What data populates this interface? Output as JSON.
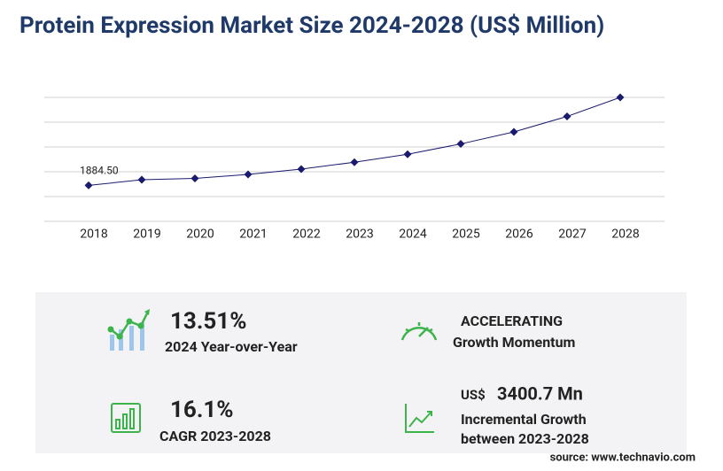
{
  "chart_data": {
    "type": "line",
    "title": "Protein Expression Market Size 2024-2028 (US$ Million)",
    "categories": [
      "2018",
      "2019",
      "2020",
      "2021",
      "2022",
      "2023",
      "2024",
      "2025",
      "2026",
      "2027",
      "2028"
    ],
    "values": [
      1884.5,
      2180,
      2250,
      2460,
      2740,
      3100,
      3519,
      4060,
      4690,
      5500,
      6500.7
    ],
    "value_labels": [
      "1884.50",
      null,
      null,
      null,
      null,
      null,
      null,
      null,
      null,
      null,
      null
    ],
    "color": "#1a1a6e",
    "ylim": [
      0,
      6500
    ],
    "yticks": [
      0,
      1300,
      2600,
      3900,
      5200,
      6500
    ],
    "grid": true
  },
  "stats": [
    {
      "value": "13.51%",
      "label": "2024 Year-over-Year"
    },
    {
      "value": "ACCELERATING",
      "label": "Growth Momentum"
    },
    {
      "value": "16.1%",
      "label": "CAGR 2023-2028"
    },
    {
      "prefix": "US$",
      "value": "3400.7 Mn",
      "label": [
        "Incremental Growth",
        "between 2023-2028"
      ]
    }
  ],
  "source": "source: www.technavio.com"
}
